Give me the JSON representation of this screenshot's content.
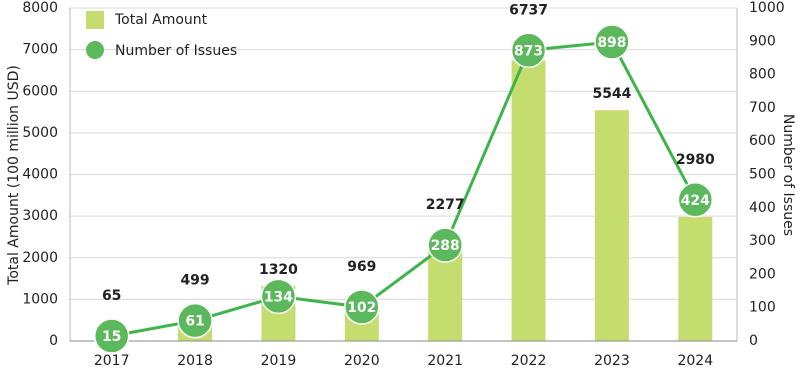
{
  "chart_data": {
    "type": "bar",
    "categories": [
      "2017",
      "2018",
      "2019",
      "2020",
      "2021",
      "2022",
      "2023",
      "2024"
    ],
    "series": [
      {
        "name": "Total Amount",
        "type": "bar",
        "color": "#c5dc6f",
        "values": [
          65,
          499,
          1320,
          969,
          2277,
          6737,
          5544,
          2980
        ]
      },
      {
        "name": "Number of Issues",
        "type": "line",
        "axis": "y2",
        "color": "#3db54a",
        "values": [
          15,
          61,
          134,
          102,
          288,
          873,
          898,
          424
        ]
      }
    ],
    "ylabel": "Total Amount (100 million USD)",
    "y2label": "Number of Issues",
    "ylim": [
      0,
      8000
    ],
    "yticks": [
      0,
      1000,
      2000,
      3000,
      4000,
      5000,
      6000,
      7000,
      8000
    ],
    "y2lim": [
      0,
      1000
    ],
    "y2ticks": [
      0,
      100,
      200,
      300,
      400,
      500,
      600,
      700,
      800,
      900,
      1000
    ],
    "grid": true,
    "legend": "top-left"
  }
}
